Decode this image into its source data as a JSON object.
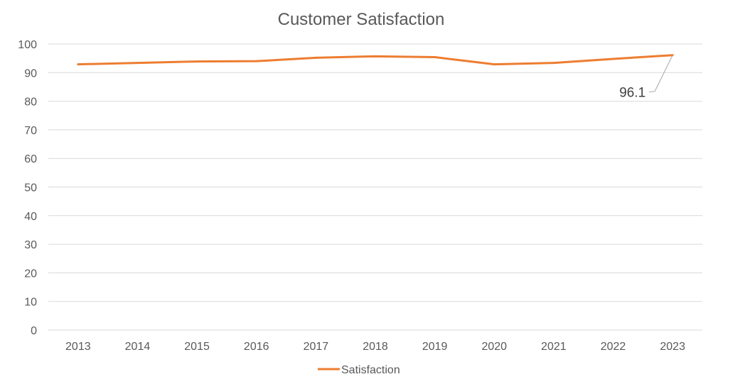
{
  "chart_data": {
    "type": "line",
    "title": "Customer Satisfaction",
    "xlabel": "",
    "ylabel": "",
    "categories": [
      "2013",
      "2014",
      "2015",
      "2016",
      "2017",
      "2018",
      "2019",
      "2020",
      "2021",
      "2022",
      "2023"
    ],
    "series": [
      {
        "name": "Satisfaction",
        "color": "#ED7D31",
        "values": [
          92.9,
          93.4,
          93.9,
          94.0,
          95.2,
          95.7,
          95.4,
          92.9,
          93.4,
          94.8,
          96.1
        ]
      }
    ],
    "ylim": [
      0,
      100
    ],
    "yticks": [
      0,
      10,
      20,
      30,
      40,
      50,
      60,
      70,
      80,
      90,
      100
    ],
    "grid": true,
    "legend": "bottom",
    "annotations": [
      {
        "category": "2023",
        "label": "96.1"
      }
    ]
  }
}
